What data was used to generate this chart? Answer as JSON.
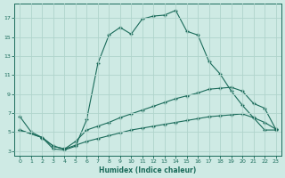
{
  "xlabel": "Humidex (Indice chaleur)",
  "background_color": "#ceeae4",
  "grid_color": "#b0d4cc",
  "line_color": "#1a6b5a",
  "xlim": [
    -0.5,
    23.5
  ],
  "ylim": [
    2.5,
    18.5
  ],
  "xticks": [
    0,
    1,
    2,
    3,
    4,
    5,
    6,
    7,
    8,
    9,
    10,
    11,
    12,
    13,
    14,
    15,
    16,
    17,
    18,
    19,
    20,
    21,
    22,
    23
  ],
  "yticks": [
    3,
    5,
    7,
    9,
    11,
    13,
    15,
    17
  ],
  "line1_x": [
    0,
    1,
    2,
    3,
    4,
    5,
    6,
    7,
    8,
    9,
    10,
    11,
    12,
    13,
    14,
    15,
    16,
    17,
    18,
    19,
    20,
    21,
    22,
    23
  ],
  "line1_y": [
    6.6,
    5.0,
    4.4,
    3.2,
    3.1,
    3.5,
    6.3,
    12.2,
    15.2,
    16.0,
    15.3,
    16.9,
    17.2,
    17.3,
    17.8,
    15.6,
    15.2,
    12.4,
    11.1,
    9.3,
    7.8,
    6.5,
    5.2,
    5.2
  ],
  "line2_x": [
    0,
    2,
    3,
    4,
    5,
    6,
    7,
    8,
    9,
    10,
    11,
    12,
    13,
    14,
    15,
    16,
    17,
    18,
    19,
    20,
    21,
    22,
    23
  ],
  "line2_y": [
    5.2,
    4.4,
    3.5,
    3.2,
    4.0,
    5.2,
    5.6,
    6.0,
    6.5,
    6.9,
    7.3,
    7.7,
    8.1,
    8.5,
    8.8,
    9.1,
    9.5,
    9.6,
    9.7,
    9.3,
    8.0,
    7.5,
    5.3
  ],
  "line3_x": [
    0,
    2,
    3,
    4,
    5,
    6,
    7,
    8,
    9,
    10,
    11,
    12,
    13,
    14,
    15,
    16,
    17,
    18,
    19,
    20,
    21,
    22,
    23
  ],
  "line3_y": [
    5.2,
    4.4,
    3.5,
    3.2,
    3.6,
    4.0,
    4.3,
    4.6,
    4.9,
    5.2,
    5.4,
    5.6,
    5.8,
    6.0,
    6.2,
    6.4,
    6.6,
    6.7,
    6.8,
    6.9,
    6.5,
    6.0,
    5.3
  ]
}
